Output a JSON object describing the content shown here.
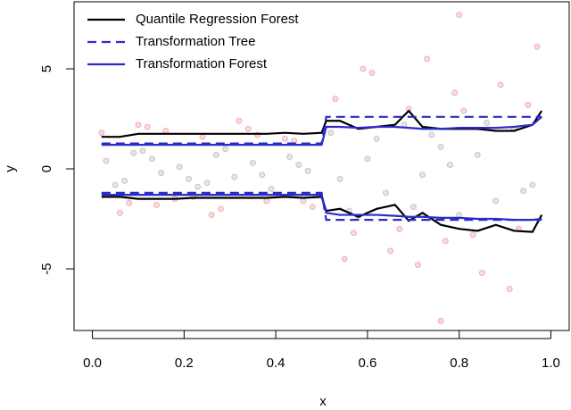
{
  "chart_data": {
    "type": "scatter",
    "xlabel": "x",
    "ylabel": "y",
    "xlim": [
      -0.04,
      1.04
    ],
    "ylim": [
      -8.08,
      8.35
    ],
    "xticks": [
      {
        "value": 0,
        "label": "0.0"
      },
      0.2,
      0.4,
      0.6,
      0.8,
      {
        "value": 1,
        "label": "1.0"
      }
    ],
    "yticks": [
      -5,
      0,
      5
    ],
    "legend": "top-left",
    "series": [
      {
        "mode": "markers",
        "color": "#808080",
        "x": [
          0.03,
          0.07,
          0.11,
          0.15,
          0.19,
          0.23,
          0.27,
          0.31,
          0.35,
          0.39,
          0.43,
          0.47,
          0.05,
          0.13,
          0.21,
          0.29,
          0.37,
          0.45,
          0.09,
          0.25,
          0.52,
          0.56,
          0.6,
          0.64,
          0.68,
          0.72,
          0.76,
          0.8,
          0.84,
          0.88,
          0.92,
          0.96,
          0.54,
          0.62,
          0.7,
          0.78,
          0.86,
          0.94,
          0.58,
          0.74
        ],
        "values": [
          0.4,
          -0.6,
          0.9,
          -0.2,
          0.1,
          -0.9,
          0.7,
          -0.4,
          0.3,
          -1.0,
          0.6,
          -0.1,
          -0.8,
          0.5,
          -0.5,
          1.0,
          -0.3,
          0.2,
          0.8,
          -0.7,
          1.8,
          -2.1,
          0.5,
          -1.2,
          2.2,
          -0.3,
          1.1,
          -2.3,
          0.7,
          -1.6,
          2.0,
          -0.8,
          -0.5,
          1.5,
          -1.9,
          0.2,
          2.3,
          -1.1,
          -2.4,
          1.7
        ]
      },
      {
        "mode": "markers",
        "color": "#e05050",
        "x": [
          0.02,
          0.08,
          0.12,
          0.18,
          0.24,
          0.28,
          0.32,
          0.38,
          0.42,
          0.48,
          0.06,
          0.16,
          0.22,
          0.34,
          0.44,
          0.14,
          0.26,
          0.36,
          0.46,
          0.1,
          0.53,
          0.57,
          0.61,
          0.65,
          0.69,
          0.73,
          0.77,
          0.81,
          0.85,
          0.89,
          0.93,
          0.97,
          0.55,
          0.67,
          0.79,
          0.91,
          0.59,
          0.71,
          0.83,
          0.95,
          0.8,
          0.76
        ],
        "values": [
          1.8,
          -1.7,
          2.1,
          -1.5,
          1.6,
          -2.0,
          2.4,
          -1.6,
          1.5,
          -1.9,
          -2.2,
          1.9,
          -1.4,
          2.0,
          1.4,
          -1.8,
          -2.3,
          1.7,
          -1.6,
          2.2,
          3.5,
          -3.2,
          4.8,
          -4.1,
          3.0,
          5.5,
          -3.6,
          2.9,
          -5.2,
          4.2,
          -3.0,
          6.1,
          -4.5,
          -3.0,
          3.8,
          -6.0,
          5.0,
          -4.8,
          -3.3,
          3.2,
          7.7,
          -7.6
        ]
      },
      {
        "mode": "lines",
        "name": "Quantile Regression Forest",
        "color": "#000000",
        "dash": false,
        "x": [
          0.02,
          0.06,
          0.1,
          0.14,
          0.18,
          0.22,
          0.26,
          0.3,
          0.34,
          0.38,
          0.42,
          0.46,
          0.5,
          0.51,
          0.54,
          0.58,
          0.62,
          0.66,
          0.69,
          0.72,
          0.76,
          0.8,
          0.84,
          0.88,
          0.92,
          0.96,
          0.98
        ],
        "values": [
          1.6,
          1.6,
          1.75,
          1.75,
          1.75,
          1.75,
          1.75,
          1.75,
          1.75,
          1.75,
          1.8,
          1.75,
          1.8,
          2.4,
          2.4,
          2.0,
          2.1,
          2.2,
          2.9,
          2.1,
          2.0,
          2.0,
          2.0,
          1.9,
          1.9,
          2.2,
          2.9
        ],
        "lower": [
          -1.4,
          -1.4,
          -1.5,
          -1.5,
          -1.5,
          -1.45,
          -1.45,
          -1.45,
          -1.45,
          -1.45,
          -1.4,
          -1.45,
          -1.4,
          -2.1,
          -2.0,
          -2.4,
          -2.0,
          -1.8,
          -2.6,
          -2.2,
          -2.8,
          -3.0,
          -3.1,
          -2.8,
          -3.1,
          -3.15,
          -2.3
        ]
      },
      {
        "mode": "lines",
        "name": "Transformation Tree",
        "color": "#2b2bcc",
        "dash": true,
        "x": [
          0.02,
          0.06,
          0.1,
          0.14,
          0.18,
          0.22,
          0.26,
          0.3,
          0.34,
          0.38,
          0.42,
          0.46,
          0.5,
          0.51,
          0.54,
          0.58,
          0.62,
          0.66,
          0.69,
          0.72,
          0.76,
          0.8,
          0.84,
          0.88,
          0.92,
          0.96,
          0.98
        ],
        "values": [
          1.27,
          1.27,
          1.27,
          1.27,
          1.27,
          1.27,
          1.27,
          1.27,
          1.27,
          1.27,
          1.27,
          1.27,
          1.27,
          2.6,
          2.6,
          2.6,
          2.6,
          2.6,
          2.6,
          2.6,
          2.6,
          2.6,
          2.6,
          2.6,
          2.6,
          2.6,
          2.6
        ],
        "lower": [
          -1.2,
          -1.2,
          -1.2,
          -1.2,
          -1.2,
          -1.2,
          -1.2,
          -1.2,
          -1.2,
          -1.2,
          -1.2,
          -1.2,
          -1.2,
          -2.55,
          -2.55,
          -2.55,
          -2.55,
          -2.55,
          -2.55,
          -2.55,
          -2.55,
          -2.55,
          -2.55,
          -2.55,
          -2.55,
          -2.55,
          -2.55
        ]
      },
      {
        "mode": "lines",
        "name": "Transformation Forest",
        "color": "#2b2bcc",
        "dash": false,
        "x": [
          0.02,
          0.06,
          0.1,
          0.14,
          0.18,
          0.22,
          0.26,
          0.3,
          0.34,
          0.38,
          0.42,
          0.46,
          0.5,
          0.51,
          0.54,
          0.58,
          0.62,
          0.66,
          0.69,
          0.72,
          0.76,
          0.8,
          0.84,
          0.88,
          0.92,
          0.96,
          0.98
        ],
        "values": [
          1.2,
          1.2,
          1.2,
          1.2,
          1.2,
          1.2,
          1.2,
          1.2,
          1.2,
          1.2,
          1.2,
          1.2,
          1.2,
          2.1,
          2.1,
          2.05,
          2.1,
          2.1,
          2.05,
          2.0,
          2.0,
          2.05,
          2.05,
          2.05,
          2.1,
          2.2,
          2.6
        ],
        "lower": [
          -1.3,
          -1.3,
          -1.3,
          -1.3,
          -1.3,
          -1.3,
          -1.3,
          -1.3,
          -1.3,
          -1.3,
          -1.3,
          -1.3,
          -1.3,
          -2.2,
          -2.3,
          -2.3,
          -2.3,
          -2.35,
          -2.4,
          -2.4,
          -2.45,
          -2.45,
          -2.5,
          -2.5,
          -2.55,
          -2.55,
          -2.5
        ]
      }
    ]
  }
}
